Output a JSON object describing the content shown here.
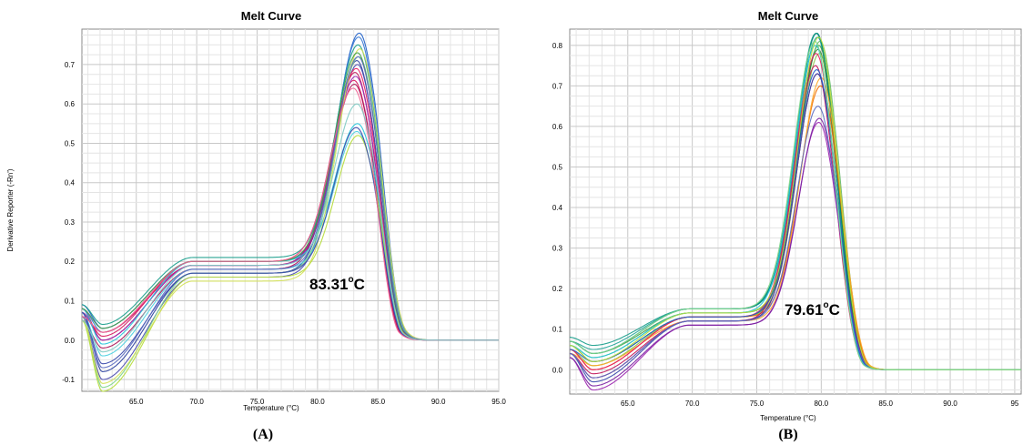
{
  "chart_data": [
    {
      "type": "line",
      "panel_label": "(A)",
      "title": "Melt Curve",
      "xlabel": "Temperature (°C)",
      "ylabel": "Derivative Reporter (-Rn')",
      "xlim": [
        60.5,
        95.0
      ],
      "ylim": [
        -0.13,
        0.79
      ],
      "xticks": [
        65.0,
        70.0,
        75.0,
        80.0,
        85.0,
        90.0,
        95.0
      ],
      "xtick_labels": [
        "65.0",
        "70.0",
        "75.0",
        "80.0",
        "85.0",
        "90.0",
        "95.0"
      ],
      "yticks": [
        -0.1,
        0.0,
        0.1,
        0.2,
        0.3,
        0.4,
        0.5,
        0.6,
        0.7
      ],
      "ytick_labels": [
        "-0.1",
        "0.0",
        "0.1",
        "0.2",
        "0.3",
        "0.4",
        "0.5",
        "0.6",
        "0.7"
      ],
      "grid": true,
      "annotation": {
        "value": "83.31",
        "unit_sup": "o",
        "unit": "C"
      },
      "curve_model": {
        "peak_x": 83.31,
        "peak_width": 1.6,
        "dip_x": 62.2,
        "plateau_level": 0.19
      },
      "series": [
        {
          "color": "#1f5fc8",
          "start": 0.09,
          "dip": 0.03,
          "plateau": 0.2,
          "peak": 0.78,
          "shift": 0.15
        },
        {
          "color": "#3a7bd5",
          "start": 0.08,
          "dip": 0.02,
          "plateau": 0.19,
          "peak": 0.77,
          "shift": 0.1
        },
        {
          "color": "#2a3f9e",
          "start": 0.07,
          "dip": -0.08,
          "plateau": 0.17,
          "peak": 0.71,
          "shift": -0.05
        },
        {
          "color": "#4b4bb0",
          "start": 0.06,
          "dip": -0.1,
          "plateau": 0.16,
          "peak": 0.7,
          "shift": 0.0
        },
        {
          "color": "#c2185b",
          "start": 0.08,
          "dip": 0.0,
          "plateau": 0.19,
          "peak": 0.68,
          "shift": -0.2
        },
        {
          "color": "#d81b60",
          "start": 0.07,
          "dip": 0.01,
          "plateau": 0.2,
          "peak": 0.66,
          "shift": -0.3
        },
        {
          "color": "#e91e63",
          "start": 0.06,
          "dip": 0.02,
          "plateau": 0.19,
          "peak": 0.69,
          "shift": -0.1
        },
        {
          "color": "#ad1457",
          "start": 0.05,
          "dip": -0.02,
          "plateau": 0.18,
          "peak": 0.65,
          "shift": -0.25
        },
        {
          "color": "#9c27b0",
          "start": 0.07,
          "dip": 0.0,
          "plateau": 0.19,
          "peak": 0.67,
          "shift": -0.15
        },
        {
          "color": "#1a9e8c",
          "start": 0.09,
          "dip": 0.04,
          "plateau": 0.21,
          "peak": 0.75,
          "shift": 0.05
        },
        {
          "color": "#26c6da",
          "start": 0.08,
          "dip": -0.01,
          "plateau": 0.2,
          "peak": 0.55,
          "shift": 0.0
        },
        {
          "color": "#4dd0e1",
          "start": 0.07,
          "dip": -0.04,
          "plateau": 0.18,
          "peak": 0.53,
          "shift": -0.05
        },
        {
          "color": "#7fd68a",
          "start": 0.06,
          "dip": -0.12,
          "plateau": 0.17,
          "peak": 0.72,
          "shift": 0.1
        },
        {
          "color": "#b5dc3a",
          "start": 0.05,
          "dip": -0.13,
          "plateau": 0.16,
          "peak": 0.52,
          "shift": 0.05
        },
        {
          "color": "#d4e157",
          "start": 0.06,
          "dip": -0.11,
          "plateau": 0.15,
          "peak": 0.74,
          "shift": 0.2
        },
        {
          "color": "#43a047",
          "start": 0.08,
          "dip": 0.03,
          "plateau": 0.2,
          "peak": 0.73,
          "shift": 0.0
        },
        {
          "color": "#3949ab",
          "start": 0.07,
          "dip": -0.06,
          "plateau": 0.17,
          "peak": 0.54,
          "shift": -0.1
        },
        {
          "color": "#5c6bc0",
          "start": 0.06,
          "dip": -0.07,
          "plateau": 0.18,
          "peak": 0.72,
          "shift": 0.05
        },
        {
          "color": "#f06292",
          "start": 0.06,
          "dip": 0.02,
          "plateau": 0.2,
          "peak": 0.64,
          "shift": -0.35
        },
        {
          "color": "#80cbc4",
          "start": 0.05,
          "dip": -0.03,
          "plateau": 0.19,
          "peak": 0.6,
          "shift": -0.05
        }
      ]
    },
    {
      "type": "line",
      "panel_label": "(B)",
      "title": "Melt Curve",
      "xlabel": "Temperature (°C)",
      "ylabel": "",
      "xlim": [
        60.5,
        95.5
      ],
      "ylim": [
        -0.06,
        0.84
      ],
      "xticks": [
        65.0,
        70.0,
        75.0,
        80.0,
        85.0,
        90.0,
        95.0
      ],
      "xtick_labels": [
        "65.0",
        "70.0",
        "75.0",
        "80.0",
        "85.0",
        "90.0",
        "95"
      ],
      "yticks": [
        0.0,
        0.1,
        0.2,
        0.3,
        0.4,
        0.5,
        0.6,
        0.7,
        0.8
      ],
      "ytick_labels": [
        "0.0",
        "0.1",
        "0.2",
        "0.3",
        "0.4",
        "0.5",
        "0.6",
        "0.7",
        "0.8"
      ],
      "grid": true,
      "annotation": {
        "value": "79.61",
        "unit_sup": "o",
        "unit": "C"
      },
      "curve_model": {
        "peak_x": 79.61,
        "peak_width": 1.4,
        "dip_x": 62.3,
        "plateau_level": 0.14
      },
      "series": [
        {
          "color": "#1a9e8c",
          "start": 0.08,
          "dip": 0.06,
          "plateau": 0.15,
          "peak": 0.83,
          "shift": 0.0
        },
        {
          "color": "#26a69a",
          "start": 0.07,
          "dip": 0.05,
          "plateau": 0.15,
          "peak": 0.82,
          "shift": 0.1
        },
        {
          "color": "#43a047",
          "start": 0.07,
          "dip": 0.04,
          "plateau": 0.14,
          "peak": 0.8,
          "shift": 0.2
        },
        {
          "color": "#66bb6a",
          "start": 0.06,
          "dip": 0.03,
          "plateau": 0.14,
          "peak": 0.81,
          "shift": 0.3
        },
        {
          "color": "#2e7d32",
          "start": 0.06,
          "dip": 0.02,
          "plateau": 0.13,
          "peak": 0.79,
          "shift": 0.15
        },
        {
          "color": "#8bc34a",
          "start": 0.05,
          "dip": 0.01,
          "plateau": 0.13,
          "peak": 0.78,
          "shift": 0.25
        },
        {
          "color": "#00897b",
          "start": 0.07,
          "dip": 0.04,
          "plateau": 0.15,
          "peak": 0.83,
          "shift": 0.05
        },
        {
          "color": "#ef6c00",
          "start": 0.05,
          "dip": 0.0,
          "plateau": 0.13,
          "peak": 0.7,
          "shift": 0.35
        },
        {
          "color": "#ffa726",
          "start": 0.04,
          "dip": 0.01,
          "plateau": 0.12,
          "peak": 0.72,
          "shift": 0.4
        },
        {
          "color": "#e91e63",
          "start": 0.05,
          "dip": 0.0,
          "plateau": 0.13,
          "peak": 0.78,
          "shift": 0.0
        },
        {
          "color": "#c2185b",
          "start": 0.04,
          "dip": -0.01,
          "plateau": 0.12,
          "peak": 0.75,
          "shift": -0.05
        },
        {
          "color": "#ad1457",
          "start": 0.04,
          "dip": -0.02,
          "plateau": 0.12,
          "peak": 0.73,
          "shift": 0.1
        },
        {
          "color": "#9c27b0",
          "start": 0.03,
          "dip": -0.05,
          "plateau": 0.11,
          "peak": 0.61,
          "shift": 0.2
        },
        {
          "color": "#7b1fa2",
          "start": 0.03,
          "dip": -0.04,
          "plateau": 0.11,
          "peak": 0.62,
          "shift": 0.25
        },
        {
          "color": "#3949ab",
          "start": 0.04,
          "dip": -0.03,
          "plateau": 0.12,
          "peak": 0.73,
          "shift": 0.1
        },
        {
          "color": "#5c6bc0",
          "start": 0.04,
          "dip": -0.02,
          "plateau": 0.12,
          "peak": 0.65,
          "shift": 0.15
        },
        {
          "color": "#1f5fc8",
          "start": 0.05,
          "dip": 0.02,
          "plateau": 0.13,
          "peak": 0.74,
          "shift": 0.05
        },
        {
          "color": "#26c6da",
          "start": 0.06,
          "dip": 0.03,
          "plateau": 0.14,
          "peak": 0.8,
          "shift": -0.05
        },
        {
          "color": "#b5dc3a",
          "start": 0.06,
          "dip": 0.02,
          "plateau": 0.14,
          "peak": 0.82,
          "shift": 0.2
        },
        {
          "color": "#7fd68a",
          "start": 0.07,
          "dip": 0.04,
          "plateau": 0.15,
          "peak": 0.81,
          "shift": -0.1
        }
      ]
    }
  ]
}
